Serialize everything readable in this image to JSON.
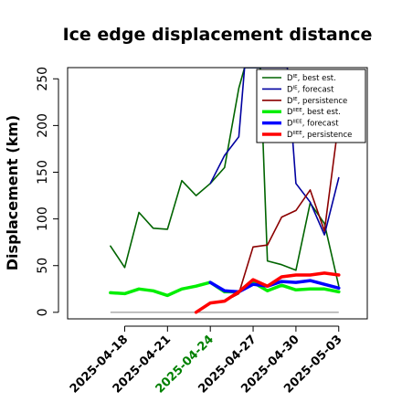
{
  "chart_data": {
    "type": "line",
    "title": "Ice edge displacement distance",
    "ylabel": "Displacement (km)",
    "xlabel": "",
    "ylim": [
      -7,
      262
    ],
    "yticks": [
      0,
      50,
      100,
      150,
      200,
      250
    ],
    "xlim": [
      "2025-04-14",
      "2025-05-05"
    ],
    "xticks": [
      {
        "date": "2025-04-18",
        "label": "2025-04-18",
        "color": "#000000"
      },
      {
        "date": "2025-04-21",
        "label": "2025-04-21",
        "color": "#000000"
      },
      {
        "date": "2025-04-24",
        "label": "2025-04-24",
        "color": "#008000"
      },
      {
        "date": "2025-04-27",
        "label": "2025-04-27",
        "color": "#000000"
      },
      {
        "date": "2025-04-30",
        "label": "2025-04-30",
        "color": "#000000"
      },
      {
        "date": "2025-05-03",
        "label": "2025-05-03",
        "color": "#000000"
      }
    ],
    "zero_line": {
      "y": 0,
      "from": "2025-04-17",
      "to": "2025-05-03",
      "color": "#808080"
    },
    "legend_position": "top-right",
    "series": [
      {
        "name": "D_IE best est.",
        "label_main": "D",
        "label_sup": "IE",
        "label_rest": ", best est.",
        "color": "#006400",
        "width": 1.6,
        "points": [
          [
            "2025-04-17",
            71
          ],
          [
            "2025-04-18",
            48
          ],
          [
            "2025-04-19",
            107
          ],
          [
            "2025-04-20",
            90
          ],
          [
            "2025-04-21",
            89
          ],
          [
            "2025-04-22",
            141
          ],
          [
            "2025-04-23",
            125
          ],
          [
            "2025-04-24",
            138
          ],
          [
            "2025-04-25",
            155
          ],
          [
            "2025-04-26",
            240
          ],
          [
            "2025-04-26.4",
            262
          ],
          [
            "2025-04-27.5",
            262
          ],
          [
            "2025-04-28",
            55
          ],
          [
            "2025-04-29",
            51
          ],
          [
            "2025-04-30",
            45
          ],
          [
            "2025-05-01",
            117
          ],
          [
            "2025-05-02",
            95
          ],
          [
            "2025-05-03",
            28
          ]
        ]
      },
      {
        "name": "D_IE forecast",
        "label_main": "D",
        "label_sup": "IE",
        "label_rest": ", forecast",
        "color": "#0000a0",
        "width": 1.6,
        "points": [
          [
            "2025-04-24",
            138
          ],
          [
            "2025-04-25",
            168
          ],
          [
            "2025-04-26",
            188
          ],
          [
            "2025-04-26.4",
            262
          ],
          [
            "2025-04-29.4",
            262
          ],
          [
            "2025-04-30",
            138
          ],
          [
            "2025-05-01",
            118
          ],
          [
            "2025-05-02",
            83
          ],
          [
            "2025-05-03",
            144
          ]
        ]
      },
      {
        "name": "D_IE persistence",
        "label_main": "D",
        "label_sup": "IE",
        "label_rest": ", persistence",
        "color": "#8b0000",
        "width": 1.6,
        "points": [
          [
            "2025-04-23",
            0
          ],
          [
            "2025-04-24",
            10
          ],
          [
            "2025-04-25",
            12
          ],
          [
            "2025-04-26",
            20
          ],
          [
            "2025-04-27",
            70
          ],
          [
            "2025-04-28",
            72
          ],
          [
            "2025-04-29",
            102
          ],
          [
            "2025-04-30",
            109
          ],
          [
            "2025-05-01",
            131
          ],
          [
            "2025-05-02",
            87
          ],
          [
            "2025-05-03",
            205
          ]
        ]
      },
      {
        "name": "D_IIEE best est.",
        "label_main": "D",
        "label_sup": "IIEE",
        "label_rest": ", best est.",
        "color": "#00ee00",
        "width": 3.5,
        "points": [
          [
            "2025-04-17",
            21
          ],
          [
            "2025-04-18",
            20
          ],
          [
            "2025-04-19",
            25
          ],
          [
            "2025-04-20",
            23
          ],
          [
            "2025-04-21",
            18
          ],
          [
            "2025-04-22",
            25
          ],
          [
            "2025-04-23",
            28
          ],
          [
            "2025-04-24",
            32
          ],
          [
            "2025-04-25",
            22
          ],
          [
            "2025-04-26",
            22
          ],
          [
            "2025-04-27",
            32
          ],
          [
            "2025-04-28",
            23
          ],
          [
            "2025-04-29",
            29
          ],
          [
            "2025-04-30",
            24
          ],
          [
            "2025-05-01",
            25
          ],
          [
            "2025-05-02",
            25
          ],
          [
            "2025-05-03",
            22
          ]
        ]
      },
      {
        "name": "D_IIEE forecast",
        "label_main": "D",
        "label_sup": "IIEE",
        "label_rest": ", forecast",
        "color": "#0000ff",
        "width": 3.5,
        "points": [
          [
            "2025-04-24",
            32
          ],
          [
            "2025-04-25",
            23
          ],
          [
            "2025-04-26",
            22
          ],
          [
            "2025-04-27",
            30
          ],
          [
            "2025-04-28",
            28
          ],
          [
            "2025-04-29",
            33
          ],
          [
            "2025-04-30",
            32
          ],
          [
            "2025-05-01",
            34
          ],
          [
            "2025-05-02",
            30
          ],
          [
            "2025-05-03",
            26
          ]
        ]
      },
      {
        "name": "D_IIEE persistence",
        "label_main": "D",
        "label_sup": "IIEE",
        "label_rest": ", persistence",
        "color": "#ff0000",
        "width": 3.5,
        "points": [
          [
            "2025-04-23",
            0
          ],
          [
            "2025-04-24",
            10
          ],
          [
            "2025-04-25",
            12
          ],
          [
            "2025-04-26",
            22
          ],
          [
            "2025-04-27",
            35
          ],
          [
            "2025-04-28",
            28
          ],
          [
            "2025-04-29",
            38
          ],
          [
            "2025-04-30",
            40
          ],
          [
            "2025-05-01",
            40
          ],
          [
            "2025-05-02",
            42
          ],
          [
            "2025-05-03",
            40
          ]
        ]
      }
    ]
  }
}
